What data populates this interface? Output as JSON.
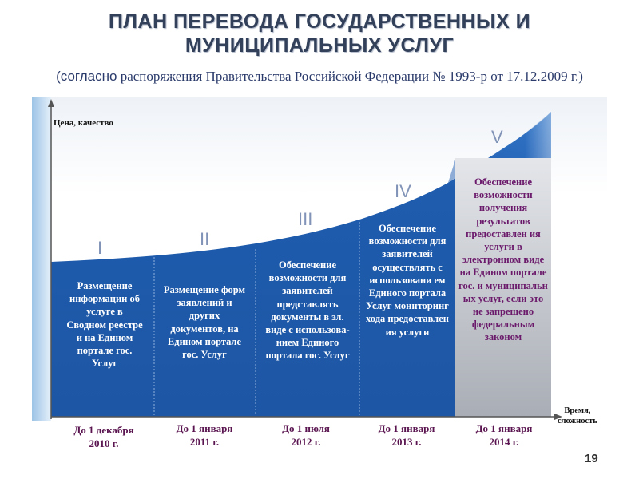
{
  "title": {
    "line1": "ПЛАН ПЕРЕВОДА ГОСУДАРСТВЕННЫХ И",
    "line2": "МУНИЦИПАЛЬНЫХ УСЛУГ"
  },
  "subtitle": {
    "lead": "(согласно",
    "rest": " распоряжения Правительства Российской Федерации № 1993-р от 17.12.2009 г.)"
  },
  "axes": {
    "y_label": "Цена, качество",
    "x_label_1": "Время,",
    "x_label_2": "сложность"
  },
  "colors": {
    "blue": "#1f5cae",
    "date_text": "#5a1550",
    "stage5_text": "#6b1a6b"
  },
  "stages": [
    {
      "numeral": "I",
      "text": "Размещение информации об услуге в Сводном реестре и на Едином портале гос. Услуг",
      "date1": "До 1 декабря",
      "date2": "2010 г."
    },
    {
      "numeral": "II",
      "text": "Размещение форм заявлений и других документов, на Едином портале гос. Услуг",
      "date1": "До 1 января",
      "date2": "2011 г."
    },
    {
      "numeral": "III",
      "text": "Обеспечение возможности для заявителей представлять документы в эл. виде с использова-нием Единого портала гос. Услуг",
      "date1": "До 1 июля",
      "date2": "2012 г."
    },
    {
      "numeral": "IV",
      "text": "Обеспечение возможности для заявителей осуществлять с использовани ем Единого портала Услуг мониторинг хода предоставлен ия услуги",
      "date1": "До 1 января",
      "date2": "2013 г."
    },
    {
      "numeral": "V",
      "text": "Обеспечение возможности получения результатов предоставлен ия услуги в электронном виде на Едином портале гос. и муниципальн ых услуг, если это не запрещено федеральным законом",
      "date1": "До 1 января",
      "date2": "2014 г."
    }
  ],
  "page_number": "19"
}
